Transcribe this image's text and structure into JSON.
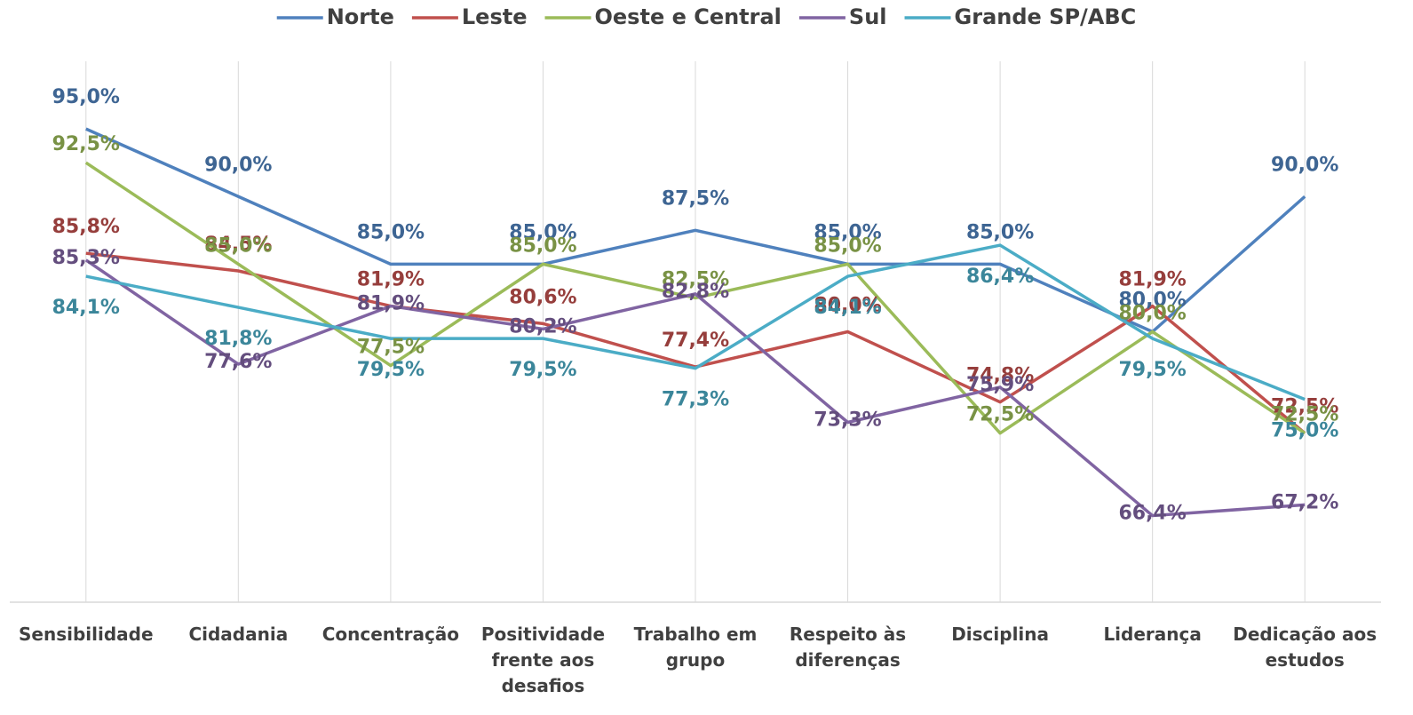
{
  "chart_data": {
    "type": "line",
    "categories": [
      "Sensibilidade",
      "Cidadania",
      "Concentração",
      "Positividade frente aos desafios",
      "Trabalho em grupo",
      "Respeito às diferenças",
      "Disciplina",
      "Liderança",
      "Dedicação aos estudos"
    ],
    "series": [
      {
        "name": "Norte",
        "color": "#4f81bd",
        "values": [
          95.0,
          90.0,
          85.0,
          85.0,
          87.5,
          85.0,
          85.0,
          80.0,
          90.0
        ],
        "value_labels": [
          "95,0%",
          "90,0%",
          "85,0%",
          "85,0%",
          "87,5%",
          "85,0%",
          "85,0%",
          "80,0%",
          "90,0%"
        ]
      },
      {
        "name": "Leste",
        "color": "#c0504d",
        "values": [
          85.8,
          84.5,
          81.9,
          80.6,
          77.4,
          80.0,
          74.8,
          81.9,
          72.5
        ],
        "value_labels": [
          "85,8%",
          "84,5%",
          "81,9%",
          "80,6%",
          "77,4%",
          "80,0%",
          "74,8%",
          "81,9%",
          "72,5%"
        ]
      },
      {
        "name": "Oeste e Central",
        "color": "#9bbb59",
        "values": [
          92.5,
          85.0,
          77.5,
          85.0,
          82.5,
          85.0,
          72.5,
          80.0,
          72.5
        ],
        "value_labels": [
          "92,5%",
          "85,0%",
          "77,5%",
          "85,0%",
          "82,5%",
          "85,0%",
          "72,5%",
          "80,0%",
          "72,5%"
        ]
      },
      {
        "name": "Sul",
        "color": "#8064a2",
        "values": [
          85.3,
          77.6,
          81.9,
          80.2,
          82.8,
          73.3,
          75.9,
          66.4,
          67.2
        ],
        "value_labels": [
          "85,3%",
          "77,6%",
          "81,9%",
          "80,2%",
          "82,8%",
          "73,3%",
          "75,9%",
          "66,4%",
          "67,2%"
        ]
      },
      {
        "name": "Grande SP/ABC",
        "color": "#4bacc6",
        "values": [
          84.1,
          81.8,
          79.5,
          79.5,
          77.3,
          84.1,
          86.4,
          79.5,
          75.0
        ],
        "value_labels": [
          "84,1%",
          "81,8%",
          "79,5%",
          "79,5%",
          "77,3%",
          "84,1%",
          "86,4%",
          "79,5%",
          "75,0%"
        ]
      }
    ],
    "ylim": [
      60,
      100
    ],
    "legend": "top"
  }
}
